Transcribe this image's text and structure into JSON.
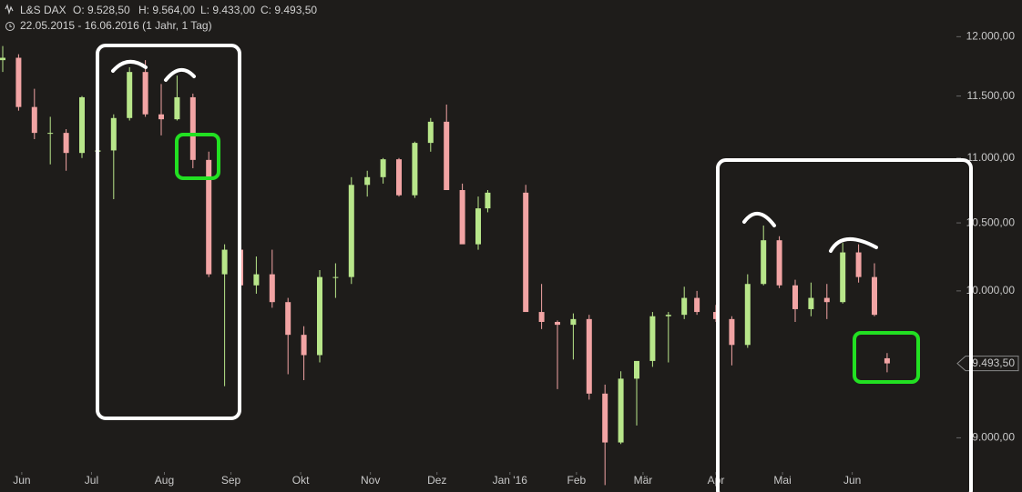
{
  "header": {
    "name": "L&S DAX",
    "open": "O: 9.528,50",
    "high": "H: 9.564,00",
    "low": "L: 9.433,00",
    "close": "C: 9.493,50",
    "range": "22.05.2015 - 16.06.2016 (1 Jahr, 1 Tag)"
  },
  "chart_data": {
    "type": "candlestick",
    "log_scale": true,
    "up_color": "#b8e68a",
    "down_color": "#f2a4a4",
    "x": [
      "2015-05-22",
      "2015-05-29",
      "2015-06-05",
      "2015-06-12",
      "2015-06-19",
      "2015-06-26",
      "2015-07-03",
      "2015-07-10",
      "2015-07-17",
      "2015-07-24",
      "2015-07-31",
      "2015-08-07",
      "2015-08-14",
      "2015-08-21",
      "2015-08-28",
      "2015-09-04",
      "2015-09-11",
      "2015-09-18",
      "2015-09-25",
      "2015-10-02",
      "2015-10-09",
      "2015-10-16",
      "2015-10-23",
      "2015-10-30",
      "2015-11-06",
      "2015-11-13",
      "2015-11-20",
      "2015-11-27",
      "2015-12-04",
      "2015-12-11",
      "2015-12-18",
      "2015-12-23",
      "2016-01-08",
      "2016-01-15",
      "2016-01-22",
      "2016-01-29",
      "2016-02-05",
      "2016-02-12",
      "2016-02-19",
      "2016-02-26",
      "2016-03-04",
      "2016-03-11",
      "2016-03-18",
      "2016-03-24",
      "2016-04-01",
      "2016-04-08",
      "2016-04-15",
      "2016-04-22",
      "2016-04-29",
      "2016-05-06",
      "2016-05-13",
      "2016-05-20",
      "2016-05-27",
      "2016-06-03",
      "2016-06-10",
      "2016-06-16"
    ],
    "open": [
      11800,
      11820,
      11410,
      11200,
      11200,
      11040,
      11050,
      11060,
      11320,
      11700,
      11350,
      11310,
      11490,
      10985,
      10120,
      10300,
      10040,
      10120,
      9920,
      9690,
      9550,
      10100,
      10100,
      10790,
      10850,
      10990,
      10710,
      11120,
      11290,
      10750,
      10340,
      10610,
      10730,
      9850,
      9780,
      9760,
      9800,
      9290,
      8970,
      9390,
      9510,
      9820,
      9830,
      9950,
      9850,
      9800,
      9620,
      10050,
      10370,
      10040,
      9870,
      9950,
      9920,
      10280,
      10100,
      9528.5
    ],
    "high": [
      11920,
      11850,
      11560,
      11330,
      11230,
      11500,
      11150,
      11350,
      11740,
      11800,
      11600,
      11670,
      11520,
      11050,
      10340,
      10450,
      10250,
      10300,
      9950,
      9750,
      10150,
      10200,
      10850,
      10900,
      11000,
      11000,
      11130,
      11320,
      11430,
      10800,
      10700,
      10750,
      10790,
      10050,
      9790,
      9840,
      9830,
      9350,
      9440,
      9490,
      9850,
      9850,
      10030,
      10000,
      9900,
      9820,
      10120,
      10480,
      10400,
      10080,
      10060,
      10050,
      10350,
      10340,
      10200,
      9564
    ],
    "low": [
      11700,
      11380,
      11150,
      10950,
      10900,
      11000,
      10820,
      10680,
      11300,
      11330,
      11180,
      11300,
      10920,
      10100,
      9340,
      10000,
      9980,
      9880,
      9420,
      9380,
      9500,
      9950,
      10050,
      10700,
      10800,
      10700,
      10690,
      11050,
      10770,
      10350,
      10300,
      10580,
      9850,
      9730,
      9320,
      9520,
      9250,
      8700,
      8960,
      9080,
      9470,
      9500,
      9800,
      9830,
      9780,
      9480,
      9600,
      10040,
      10020,
      9780,
      9820,
      9800,
      9910,
      10060,
      9820,
      9433
    ],
    "close": [
      11820,
      11410,
      11200,
      11200,
      11040,
      11490,
      11060,
      11320,
      11700,
      11350,
      11310,
      11490,
      10985,
      10120,
      10300,
      10040,
      10120,
      9920,
      9690,
      9550,
      10100,
      10100,
      10790,
      10850,
      10990,
      10710,
      11120,
      11290,
      10750,
      10340,
      10610,
      10730,
      9850,
      9780,
      9760,
      9800,
      9290,
      8970,
      9390,
      9510,
      9820,
      9830,
      9950,
      9850,
      9800,
      9620,
      10050,
      10370,
      10040,
      9870,
      9950,
      9920,
      10280,
      10100,
      9830,
      9493.5
    ],
    "ylim": [
      8657,
      12320
    ],
    "yticks": [
      {
        "value": 12000,
        "label": "12.000,00"
      },
      {
        "value": 11500,
        "label": "11.500,00"
      },
      {
        "value": 11000,
        "label": "11.000,00"
      },
      {
        "value": 10500,
        "label": "10.500,00"
      },
      {
        "value": 10000,
        "label": "10.000,00"
      },
      {
        "value": 9000,
        "label": "9.000,00"
      }
    ],
    "xticks": [
      {
        "value": "2015-06-01",
        "label": "Jun"
      },
      {
        "value": "2015-07-01",
        "label": "Jul"
      },
      {
        "value": "2015-08-03",
        "label": "Aug"
      },
      {
        "value": "2015-09-01",
        "label": "Sep"
      },
      {
        "value": "2015-10-01",
        "label": "Okt"
      },
      {
        "value": "2015-11-02",
        "label": "Nov"
      },
      {
        "value": "2015-12-01",
        "label": "Dez"
      },
      {
        "value": "2016-01-01",
        "label": "Jan '16"
      },
      {
        "value": "2016-02-01",
        "label": "Feb"
      },
      {
        "value": "2016-03-01",
        "label": "Mär"
      },
      {
        "value": "2016-04-01",
        "label": "Apr"
      },
      {
        "value": "2016-05-02",
        "label": "Mai"
      },
      {
        "value": "2016-06-01",
        "label": "Jun"
      }
    ],
    "price_marker": {
      "value": 9493.5,
      "label": "9.493,50"
    }
  }
}
